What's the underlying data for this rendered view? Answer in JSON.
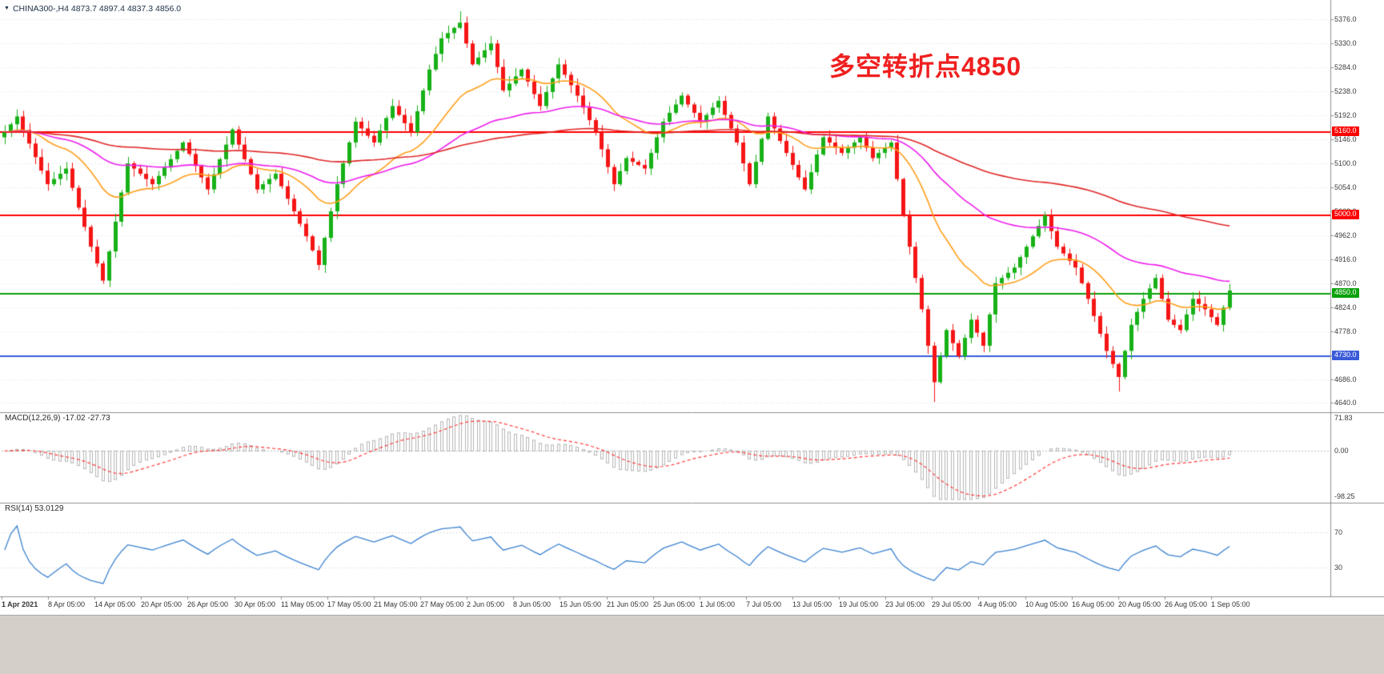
{
  "header": {
    "symbol_info": "CHINA300-,H4 4873.7 4897.4 4837.3 4856.0",
    "dropdown_icon": "triangle-down-icon"
  },
  "annotation": {
    "text": "多空转折点4850",
    "color": "#ef1f1f"
  },
  "colors": {
    "background": "#ffffff",
    "grid": "#dedede",
    "divider": "#909090",
    "axis_text": "#3a3a3a",
    "candle_up": "#17b117",
    "candle_down": "#f51515",
    "zero_line": "#bdbdbd",
    "level_dotted": "#c8c8c8",
    "bottom_strip": "#d4d0c8",
    "symbol_text": "#1c2f45"
  },
  "chart_data": {
    "type": "candlestick",
    "symbol": "CHINA300-",
    "timeframe": "H4",
    "ohlc_display": {
      "open": "4873.7",
      "high": "4897.4",
      "low": "4837.3",
      "close": "4856.0"
    },
    "price_axis": {
      "min": 4640,
      "max": 5376,
      "step": 46,
      "labels": [
        "5376.0",
        "5330.0",
        "5284.0",
        "5238.0",
        "5192.0",
        "5146.0",
        "5100.0",
        "5054.0",
        "5008.0",
        "4962.0",
        "4916.0",
        "4870.0",
        "4824.0",
        "4778.0",
        "4732.0",
        "4686.0",
        "4640.0"
      ]
    },
    "time_labels": [
      "1 Apr 2021",
      "8 Apr 05:00",
      "14 Apr 05:00",
      "20 Apr 05:00",
      "26 Apr 05:00",
      "30 Apr 05:00",
      "11 May 05:00",
      "17 May 05:00",
      "21 May 05:00",
      "27 May 05:00",
      "2 Jun 05:00",
      "8 Jun 05:00",
      "15 Jun 05:00",
      "21 Jun 05:00",
      "25 Jun 05:00",
      "1 Jul 05:00",
      "7 Jul 05:00",
      "13 Jul 05:00",
      "19 Jul 05:00",
      "23 Jul 05:00",
      "29 Jul 05:00",
      "4 Aug 05:00",
      "10 Aug 05:00",
      "16 Aug 05:00",
      "20 Aug 05:00",
      "26 Aug 05:00",
      "1 Sep 05:00"
    ],
    "first_open": 5150,
    "wick_volatility": 16,
    "closes": [
      5160,
      5175,
      5190,
      5164,
      5138,
      5112,
      5086,
      5060,
      5070,
      5080,
      5090,
      5053,
      5015,
      4978,
      4940,
      4908,
      4875,
      4931,
      4988,
      5044,
      5100,
      5090,
      5080,
      5070,
      5060,
      5076,
      5092,
      5108,
      5124,
      5140,
      5118,
      5095,
      5073,
      5050,
      5079,
      5108,
      5136,
      5165,
      5136,
      5108,
      5079,
      5050,
      5060,
      5070,
      5080,
      5056,
      5032,
      5008,
      4984,
      4960,
      4933,
      4905,
      4957,
      5008,
      5060,
      5100,
      5140,
      5180,
      5167,
      5153,
      5140,
      5163,
      5187,
      5210,
      5193,
      5177,
      5160,
      5200,
      5240,
      5280,
      5310,
      5340,
      5350,
      5360,
      5370,
      5330,
      5290,
      5303,
      5317,
      5330,
      5285,
      5240,
      5253,
      5267,
      5280,
      5257,
      5233,
      5210,
      5237,
      5263,
      5290,
      5270,
      5250,
      5230,
      5207,
      5183,
      5160,
      5127,
      5093,
      5060,
      5085,
      5110,
      5103,
      5097,
      5090,
      5120,
      5150,
      5180,
      5197,
      5213,
      5230,
      5213,
      5197,
      5180,
      5193,
      5207,
      5220,
      5193,
      5167,
      5140,
      5100,
      5060,
      5103,
      5147,
      5190,
      5167,
      5143,
      5120,
      5097,
      5073,
      5050,
      5083,
      5117,
      5150,
      5140,
      5130,
      5120,
      5130,
      5140,
      5150,
      5130,
      5110,
      5120,
      5130,
      5140,
      5070,
      5000,
      4940,
      4880,
      4820,
      4750,
      4680,
      4730,
      4780,
      4755,
      4730,
      4765,
      4800,
      4775,
      4750,
      4810,
      4870,
      4880,
      4890,
      4900,
      4920,
      4940,
      4960,
      4980,
      5000,
      4970,
      4940,
      4927,
      4913,
      4900,
      4870,
      4840,
      4807,
      4773,
      4740,
      4715,
      4690,
      4740,
      4790,
      4815,
      4840,
      4860,
      4880,
      4840,
      4800,
      4790,
      4780,
      4810,
      4840,
      4830,
      4820,
      4805,
      4790,
      4823,
      4856
    ],
    "high_overrides": {
      "74": 5392
    },
    "low_overrides": {
      "151": 4642,
      "181": 4662
    },
    "moving_averages": [
      {
        "name": "fast-ma",
        "period": 21,
        "color": "#ff9f1a"
      },
      {
        "name": "medium-ma",
        "period": 55,
        "color": "#ee1fee"
      },
      {
        "name": "slow-ma",
        "period": 140,
        "color": "#e02626"
      }
    ],
    "hlines": [
      {
        "price": 5160.0,
        "label": "5160.0",
        "color": "#ff0000",
        "width": 2
      },
      {
        "price": 5000.0,
        "label": "5000.0",
        "color": "#ff0000",
        "width": 2
      },
      {
        "price": 4850.0,
        "label": "4850.0",
        "color": "#0aa10a",
        "width": 2
      },
      {
        "price": 4730.0,
        "label": "4730.0",
        "color": "#3a5bd9",
        "width": 2
      }
    ],
    "indicators": {
      "macd": {
        "label": "MACD(12,26,9)",
        "values_text": "-17.02 -27.73",
        "fast": 12,
        "slow": 26,
        "signal": 9,
        "axis_labels": [
          "71.83",
          "0.00",
          "-98.25"
        ],
        "axis_max": 71.83,
        "axis_min": -98.25,
        "histogram_color": "#b5b5b5",
        "signal_color": "#ff3b3b"
      },
      "rsi": {
        "label": "RSI(14)",
        "value_text": "53.0129",
        "period": 14,
        "levels": [
          70,
          30
        ],
        "axis_labels": [
          "70",
          "30"
        ],
        "range": [
          0,
          100
        ],
        "color": "#3b82d0"
      }
    }
  }
}
